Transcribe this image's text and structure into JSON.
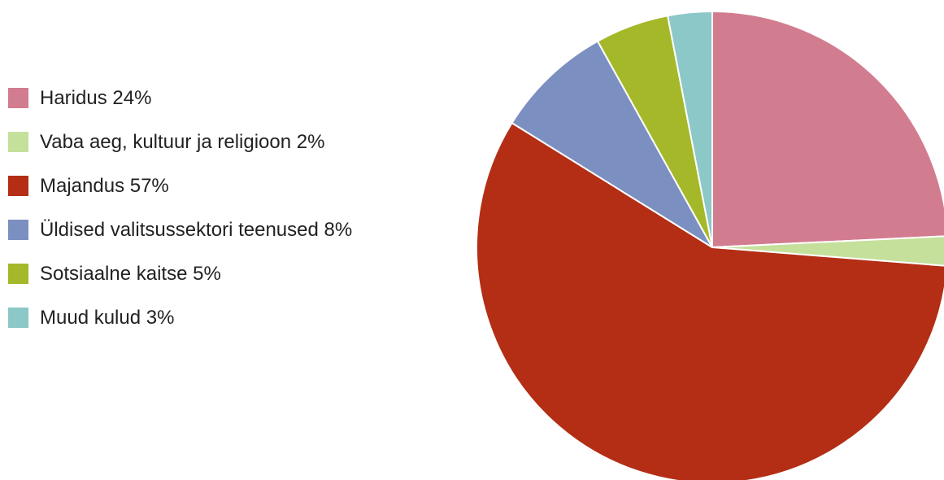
{
  "chart_data": {
    "type": "pie",
    "slices": [
      {
        "label": "Haridus 24%",
        "value": 24,
        "color": "#d27c90"
      },
      {
        "label": "Vaba aeg, kultuur ja religioon 2%",
        "value": 2,
        "color": "#c5e09a"
      },
      {
        "label": "Majandus 57%",
        "value": 57,
        "color": "#b32e14"
      },
      {
        "label": "Üldised valitsussektori teenused 8%",
        "value": 8,
        "color": "#7b8fc1"
      },
      {
        "label": "Sotsiaalne kaitse 5%",
        "value": 5,
        "color": "#a4b82a"
      },
      {
        "label": "Muud kulud 3%",
        "value": 3,
        "color": "#8cc8c8"
      }
    ],
    "start_angle_deg": 0,
    "direction": "clockwise",
    "legend_position": "left"
  }
}
